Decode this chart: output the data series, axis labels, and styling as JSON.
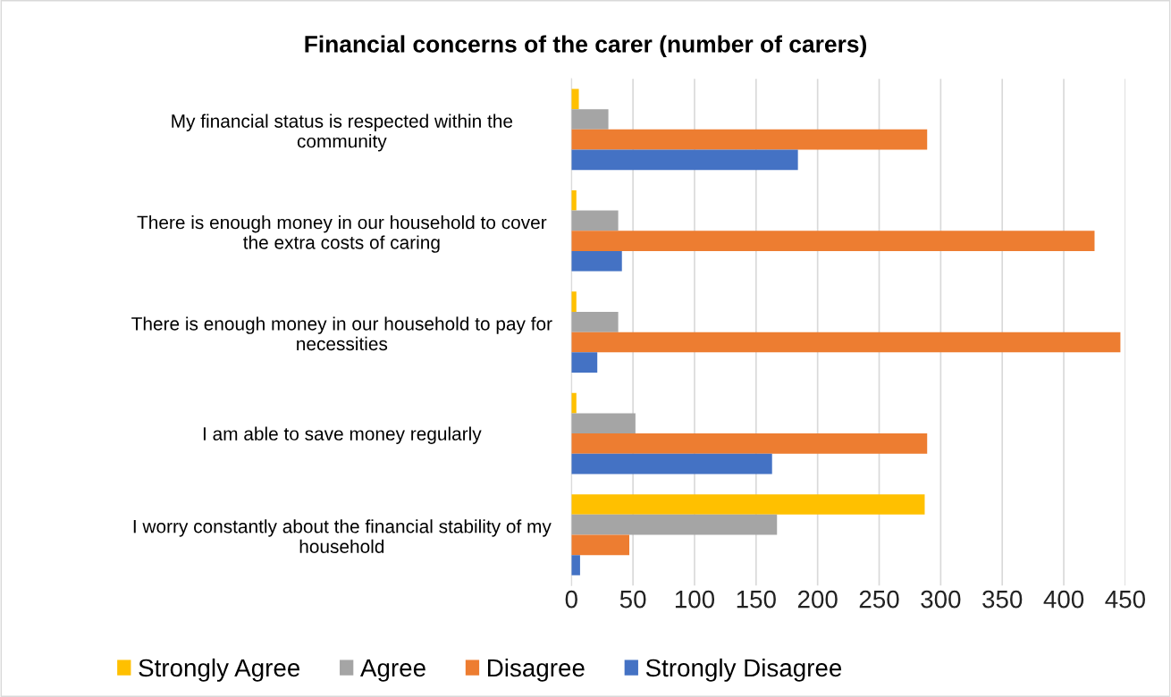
{
  "chart_data": {
    "type": "bar",
    "orientation": "horizontal",
    "title": "Financial concerns of the carer (number of carers)",
    "categories": [
      "My financial status is respected within the\ncommunity",
      "There is enough money in our household to cover\nthe extra costs of caring",
      "There is enough money in our household to pay for\nnecessities",
      "I am able to save money regularly",
      "I worry constantly about the financial stability of my\nhousehold"
    ],
    "series": [
      {
        "name": "Strongly Agree",
        "color": "#ffc000",
        "values": [
          6,
          4,
          4,
          4,
          287
        ]
      },
      {
        "name": "Agree",
        "color": "#a5a5a5",
        "values": [
          30,
          38,
          38,
          52,
          167
        ]
      },
      {
        "name": "Disagree",
        "color": "#ed7d31",
        "values": [
          289,
          425,
          446,
          289,
          47
        ]
      },
      {
        "name": "Strongly Disagree",
        "color": "#4472c4",
        "values": [
          184,
          41,
          21,
          163,
          7
        ]
      }
    ],
    "xlim": [
      0,
      450
    ],
    "xticks": [
      0,
      50,
      100,
      150,
      200,
      250,
      300,
      350,
      400,
      450
    ],
    "grid": "x",
    "legend": "bottom"
  }
}
